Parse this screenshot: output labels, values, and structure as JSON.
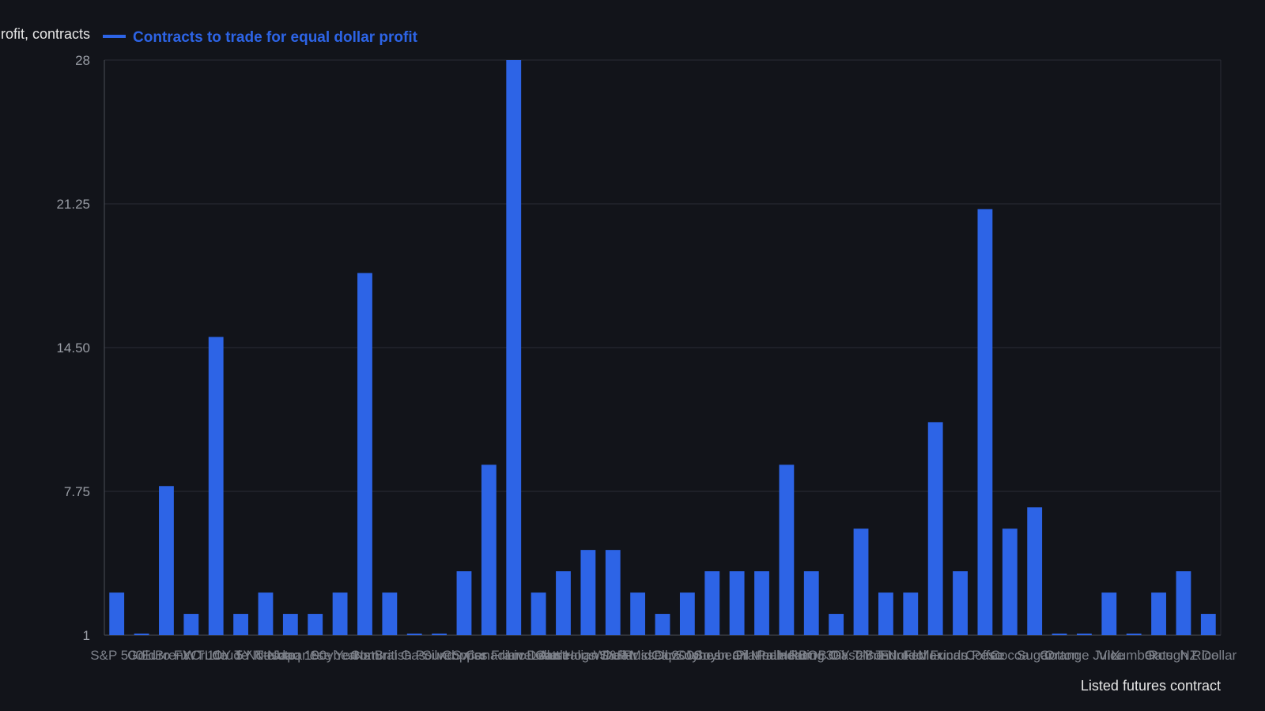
{
  "chart_data": {
    "type": "bar",
    "title": "",
    "ylabel": "Profit, contracts",
    "xlabel": "Listed futures contract",
    "ylim": [
      1,
      28
    ],
    "y_ticks": [
      "1",
      "7.75",
      "14.50",
      "21.25",
      "28"
    ],
    "y_tick_values": [
      1,
      7.75,
      14.5,
      21.25,
      28
    ],
    "grid": true,
    "legend_position": "top-left",
    "colors": {
      "background": "#12141a",
      "bar": "#2d64e6",
      "grid": "#2a2d35",
      "axis": "#4a4e57"
    },
    "series": [
      {
        "name": "Contracts to trade for equal dollar profit",
        "values": [
          3,
          1,
          8,
          2,
          15,
          2,
          3,
          2,
          2,
          3,
          18,
          3,
          1,
          1,
          4,
          9,
          28,
          3,
          4,
          5,
          5,
          3,
          2,
          3,
          4,
          4,
          4,
          9,
          4,
          2,
          6,
          3,
          3,
          11,
          4,
          21,
          6,
          7,
          1,
          1,
          3,
          1,
          3,
          4,
          2
        ]
      }
    ],
    "categories": [
      "S&P 500",
      "Gold",
      "Euro FX",
      "Brent Crude",
      "WTI Crude",
      "10Y T-Note",
      "5Y T-Note",
      "Nasdaq 100",
      "Japanese Yen",
      "Soybeans",
      "Corn",
      "Natural Gas",
      "British Pound",
      "Silver",
      "Copper",
      "Swiss Franc",
      "Canadian Dollar",
      "Live Cattle",
      "Lean Hogs",
      "Australian Dollar",
      "Wheat",
      "S&P MidCap",
      "Russell 2000",
      "Dow Jones",
      "Soybean Oil",
      "Soybean Meal",
      "Platinum",
      "Palladium",
      "Heating Oil",
      "RBOB Gasoline",
      "30Y T-Bond",
      "2Y T-Note",
      "Eurodollar",
      "Fed Funds",
      "Mexican Peso",
      "Coffee",
      "Cocoa",
      "Sugar",
      "Cotton",
      "Orange Juice",
      "VIX",
      "Lumber",
      "Oats",
      "Rough Rice",
      "NZ Dollar"
    ]
  }
}
